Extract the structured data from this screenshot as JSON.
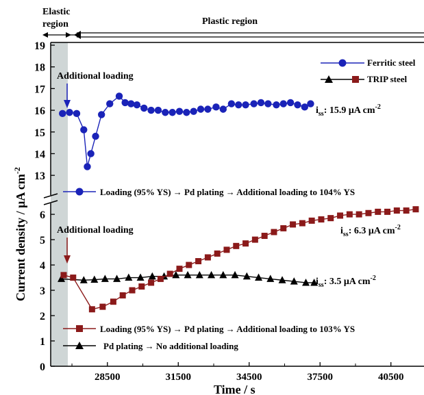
{
  "chart_data": [
    {
      "panel": "upper",
      "type": "line",
      "ylim": [
        12.5,
        19
      ],
      "yticks": [
        13,
        14,
        15,
        16,
        17,
        18,
        19
      ],
      "series": [
        {
          "name": "Ferritic steel",
          "legend_label": "Ferritic steel",
          "color": "#1a23b8",
          "marker": "circle",
          "x": [
            26600,
            26900,
            27200,
            27500,
            27650,
            27800,
            28000,
            28250,
            28600,
            29000,
            29250,
            29500,
            29750,
            30050,
            30350,
            30650,
            30950,
            31250,
            31550,
            31850,
            32150,
            32450,
            32750,
            33100,
            33400,
            33750,
            34050,
            34350,
            34700,
            35000,
            35300,
            35650,
            35950,
            36250,
            36550,
            36850,
            37100
          ],
          "y": [
            15.85,
            15.9,
            15.85,
            15.1,
            13.4,
            14.0,
            14.8,
            15.8,
            16.3,
            16.65,
            16.35,
            16.3,
            16.25,
            16.1,
            16.0,
            16.0,
            15.9,
            15.9,
            15.95,
            15.9,
            15.95,
            16.05,
            16.05,
            16.15,
            16.05,
            16.3,
            16.25,
            16.25,
            16.3,
            16.35,
            16.3,
            16.25,
            16.3,
            16.35,
            16.25,
            16.15,
            16.3
          ]
        }
      ],
      "annotations": {
        "additional_loading": "Additional loading",
        "steady": "15.9 μA cm",
        "steady_sub": "ss",
        "steady_prefix": "i",
        "steady_exp": "-2",
        "legend_line": "Loading (95% YS) → Pd plating → Additional loading to 104% YS"
      }
    },
    {
      "panel": "lower",
      "type": "line",
      "ylim": [
        0,
        6.3
      ],
      "yticks": [
        0,
        1,
        2,
        3,
        4,
        5,
        6
      ],
      "x_ticks": [
        28500,
        31500,
        34500,
        37500,
        40500
      ],
      "xlim": [
        26100,
        41900
      ],
      "series": [
        {
          "name": "TRIP steel (additional loading)",
          "color": "#8b1a1a",
          "marker": "square",
          "x": [
            26650,
            27050,
            27850,
            28300,
            28750,
            29150,
            29550,
            29950,
            30350,
            30750,
            31150,
            31550,
            31950,
            32350,
            32750,
            33150,
            33550,
            33950,
            34350,
            34750,
            35150,
            35550,
            35950,
            36350,
            36750,
            37150,
            37550,
            37950,
            38350,
            38750,
            39150,
            39550,
            39950,
            40350,
            40750,
            41150,
            41550
          ],
          "y": [
            3.6,
            3.5,
            2.25,
            2.35,
            2.55,
            2.8,
            3.0,
            3.15,
            3.3,
            3.45,
            3.65,
            3.85,
            4.0,
            4.15,
            4.3,
            4.45,
            4.6,
            4.75,
            4.85,
            5.0,
            5.15,
            5.3,
            5.45,
            5.6,
            5.65,
            5.75,
            5.8,
            5.85,
            5.95,
            6.0,
            6.0,
            6.05,
            6.1,
            6.1,
            6.15,
            6.15,
            6.2
          ]
        },
        {
          "name": "TRIP steel (no additional loading)",
          "color": "#000000",
          "marker": "triangle",
          "x": [
            26550,
            27500,
            27950,
            28400,
            28900,
            29400,
            29900,
            30400,
            30900,
            31400,
            31900,
            32400,
            32900,
            33400,
            33900,
            34400,
            34900,
            35400,
            35900,
            36400,
            36900,
            37250
          ],
          "y": [
            3.45,
            3.4,
            3.42,
            3.45,
            3.45,
            3.5,
            3.5,
            3.55,
            3.55,
            3.6,
            3.6,
            3.6,
            3.6,
            3.6,
            3.6,
            3.55,
            3.5,
            3.45,
            3.4,
            3.35,
            3.3,
            3.3
          ]
        }
      ],
      "annotations": {
        "additional_loading": "Additional loading",
        "steady_63": "6.3 μA cm",
        "steady_35": "3.5 μA cm",
        "steady_sub": "ss",
        "steady_prefix": "i",
        "steady_exp": "-2",
        "legend_line1": "Loading (95% YS) → Pd plating → Additional loading to 103% YS",
        "legend_line2": "Pd plating → No additional loading"
      }
    }
  ],
  "legend": {
    "ferritic": "Ferritic steel",
    "trip": "TRIP steel",
    "placement": "top-right"
  },
  "regions": {
    "elastic_line1": "Elastic",
    "elastic_line2": "region",
    "plastic": "Plastic region"
  },
  "axes": {
    "xlabel": "Time / s",
    "ylabel": "Current density / μA cm",
    "ylabel_exp": "-2"
  },
  "colors": {
    "elastic_band": "#cfd6d6",
    "ferritic": "#1a23b8",
    "trip": "#8b1a1a",
    "black": "#000000"
  }
}
